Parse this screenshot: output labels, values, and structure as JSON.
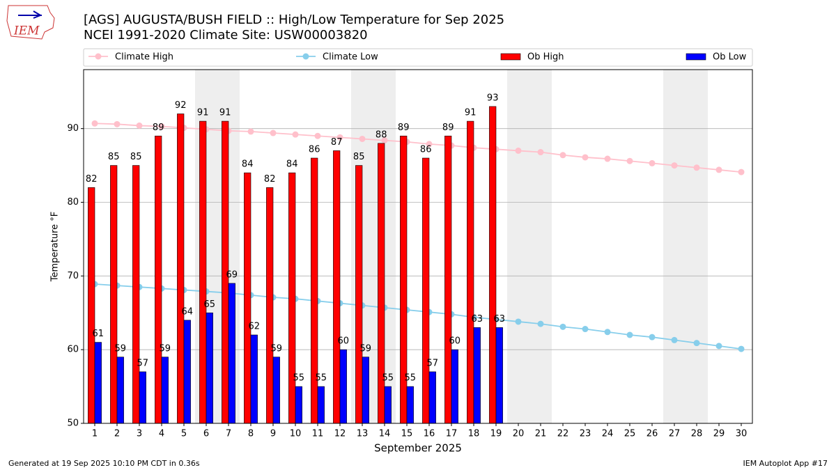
{
  "logo_text": "IEM",
  "chart_data": {
    "type": "bar",
    "title": "[AGS] AUGUSTA/BUSH FIELD :: High/Low Temperature for Sep 2025",
    "subtitle": "NCEI 1991-2020 Climate Site: USW00003820",
    "x_label": "September 2025",
    "y_label": "Temperature °F",
    "footer_left": "Generated at 19 Sep 2025 10:10 PM CDT in 0.36s",
    "footer_right": "IEM Autoplot App #17",
    "x": [
      1,
      2,
      3,
      4,
      5,
      6,
      7,
      8,
      9,
      10,
      11,
      12,
      13,
      14,
      15,
      16,
      17,
      18,
      19,
      20,
      21,
      22,
      23,
      24,
      25,
      26,
      27,
      28,
      29,
      30
    ],
    "xlim": [
      0.5,
      30.5
    ],
    "xticks": [
      1,
      2,
      3,
      4,
      5,
      6,
      7,
      8,
      9,
      10,
      11,
      12,
      13,
      14,
      15,
      16,
      17,
      18,
      19,
      20,
      21,
      22,
      23,
      24,
      25,
      26,
      27,
      28,
      29,
      30
    ],
    "ylim": [
      50,
      98
    ],
    "yticks": [
      50,
      60,
      70,
      80,
      90
    ],
    "grid": true,
    "shaded_days": [
      6,
      7,
      13,
      14,
      20,
      21,
      27,
      28
    ],
    "shade_color": "#eeeeee",
    "series": [
      {
        "name": "Climate High",
        "type": "line",
        "color": "#ffc0cb",
        "values": [
          90.7,
          90.6,
          90.4,
          90.3,
          90.1,
          89.9,
          89.7,
          89.6,
          89.4,
          89.2,
          89.0,
          88.8,
          88.6,
          88.4,
          88.2,
          87.9,
          87.7,
          87.4,
          87.2,
          87.0,
          86.8,
          86.4,
          86.1,
          85.9,
          85.6,
          85.3,
          85.0,
          84.7,
          84.4,
          84.1
        ]
      },
      {
        "name": "Climate Low",
        "type": "line",
        "color": "#87ceeb",
        "values": [
          68.9,
          68.7,
          68.5,
          68.3,
          68.1,
          67.9,
          67.7,
          67.4,
          67.1,
          66.9,
          66.6,
          66.3,
          66.0,
          65.7,
          65.4,
          65.1,
          64.8,
          64.4,
          64.1,
          63.8,
          63.5,
          63.1,
          62.8,
          62.4,
          62.0,
          61.7,
          61.3,
          60.9,
          60.5,
          60.1
        ]
      },
      {
        "name": "Ob High",
        "type": "bar",
        "color": "#ff0000",
        "values": [
          82,
          85,
          85,
          89,
          92,
          91,
          91,
          84,
          82,
          84,
          86,
          87,
          85,
          88,
          89,
          86,
          89,
          91,
          93,
          null,
          null,
          null,
          null,
          null,
          null,
          null,
          null,
          null,
          null,
          null
        ]
      },
      {
        "name": "Ob Low",
        "type": "bar",
        "color": "#0000ff",
        "values": [
          61,
          59,
          57,
          59,
          64,
          65,
          69,
          62,
          59,
          55,
          55,
          60,
          59,
          55,
          55,
          57,
          60,
          63,
          63,
          null,
          null,
          null,
          null,
          null,
          null,
          null,
          null,
          null,
          null,
          null
        ]
      }
    ]
  }
}
